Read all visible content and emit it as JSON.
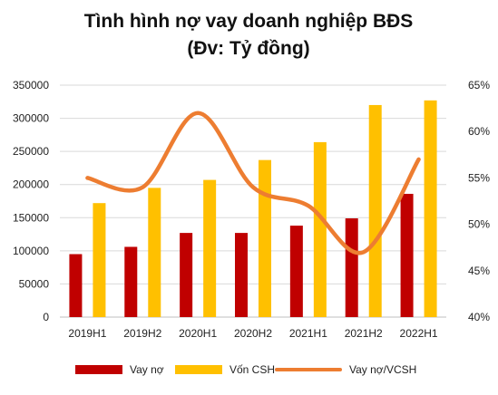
{
  "chart_data": {
    "type": "bar",
    "title": "Tình hình nợ vay doanh nghiệp BĐS",
    "subtitle": "(Đv: Tỷ đồng)",
    "categories": [
      "2019H1",
      "2019H2",
      "2020H1",
      "2020H2",
      "2021H1",
      "2021H2",
      "2022H1"
    ],
    "series": [
      {
        "name": "Vay nợ",
        "type": "bar",
        "axis": "left",
        "color": "#c00000",
        "values": [
          95000,
          106000,
          127000,
          127000,
          138000,
          149000,
          186000
        ]
      },
      {
        "name": "Vốn CSH",
        "type": "bar",
        "axis": "left",
        "color": "#ffc000",
        "values": [
          172000,
          195000,
          207000,
          237000,
          264000,
          320000,
          327000
        ]
      },
      {
        "name": "Vay nợ/VCSH",
        "type": "line",
        "axis": "right",
        "smooth": true,
        "color": "#ed7d31",
        "values": [
          0.55,
          0.54,
          0.62,
          0.54,
          0.52,
          0.47,
          0.57
        ]
      }
    ],
    "y_left": {
      "min": 0,
      "max": 350000,
      "ticks": [
        "0",
        "50000",
        "100000",
        "150000",
        "200000",
        "250000",
        "300000",
        "350000"
      ]
    },
    "y_right": {
      "min": 0.4,
      "max": 0.65,
      "ticks": [
        "40%",
        "45%",
        "50%",
        "55%",
        "60%",
        "65%"
      ]
    },
    "grid": true,
    "legend_position": "bottom"
  }
}
